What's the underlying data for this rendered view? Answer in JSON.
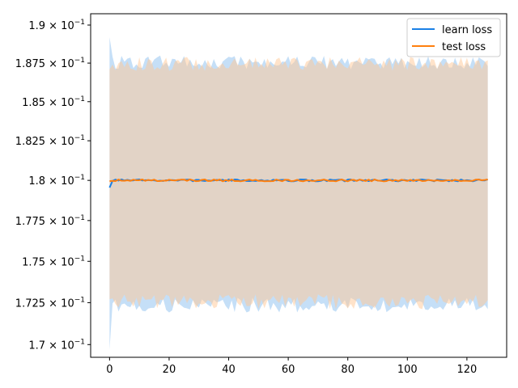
{
  "chart_data": {
    "type": "line",
    "title": "",
    "xlabel": "",
    "ylabel": "",
    "x_range": [
      0,
      127
    ],
    "xlim": [
      -6.35,
      133.35
    ],
    "ylim": [
      0.16925,
      0.19075
    ],
    "y_scale": "log",
    "x_ticks": [
      0,
      20,
      40,
      60,
      80,
      100,
      120
    ],
    "y_ticks": [
      {
        "value": 0.17,
        "mantissa": "1.7"
      },
      {
        "value": 0.1725,
        "mantissa": "1.725"
      },
      {
        "value": 0.175,
        "mantissa": "1.75"
      },
      {
        "value": 0.1775,
        "mantissa": "1.775"
      },
      {
        "value": 0.18,
        "mantissa": "1.8"
      },
      {
        "value": 0.1825,
        "mantissa": "1.825"
      },
      {
        "value": 0.185,
        "mantissa": "1.85"
      },
      {
        "value": 0.1875,
        "mantissa": "1.875"
      },
      {
        "value": 0.19,
        "mantissa": "1.9"
      }
    ],
    "y_tick_exponent_base": "10",
    "y_tick_exponent": "−1",
    "grid": false,
    "legend": {
      "position": "top-right"
    },
    "series": [
      {
        "name": "learn loss",
        "color": "#1f77b4",
        "line_color": "#1a80e6",
        "band_color": "#9ecaf2",
        "start": {
          "x": 0,
          "y": 0.17955,
          "upper": 0.1892,
          "lower": 0.1697
        },
        "level": 0.18,
        "band_upper": 0.1875,
        "band_lower": 0.1724,
        "seed": 7
      },
      {
        "name": "test loss",
        "color": "#ff7f0e",
        "line_color": "#ff7f0e",
        "band_color": "#ffc896",
        "start": {
          "x": 0,
          "y": 0.17995,
          "upper": 0.1871,
          "lower": 0.1727
        },
        "level": 0.18,
        "band_upper": 0.1874,
        "band_lower": 0.1726,
        "seed": 13
      }
    ]
  }
}
